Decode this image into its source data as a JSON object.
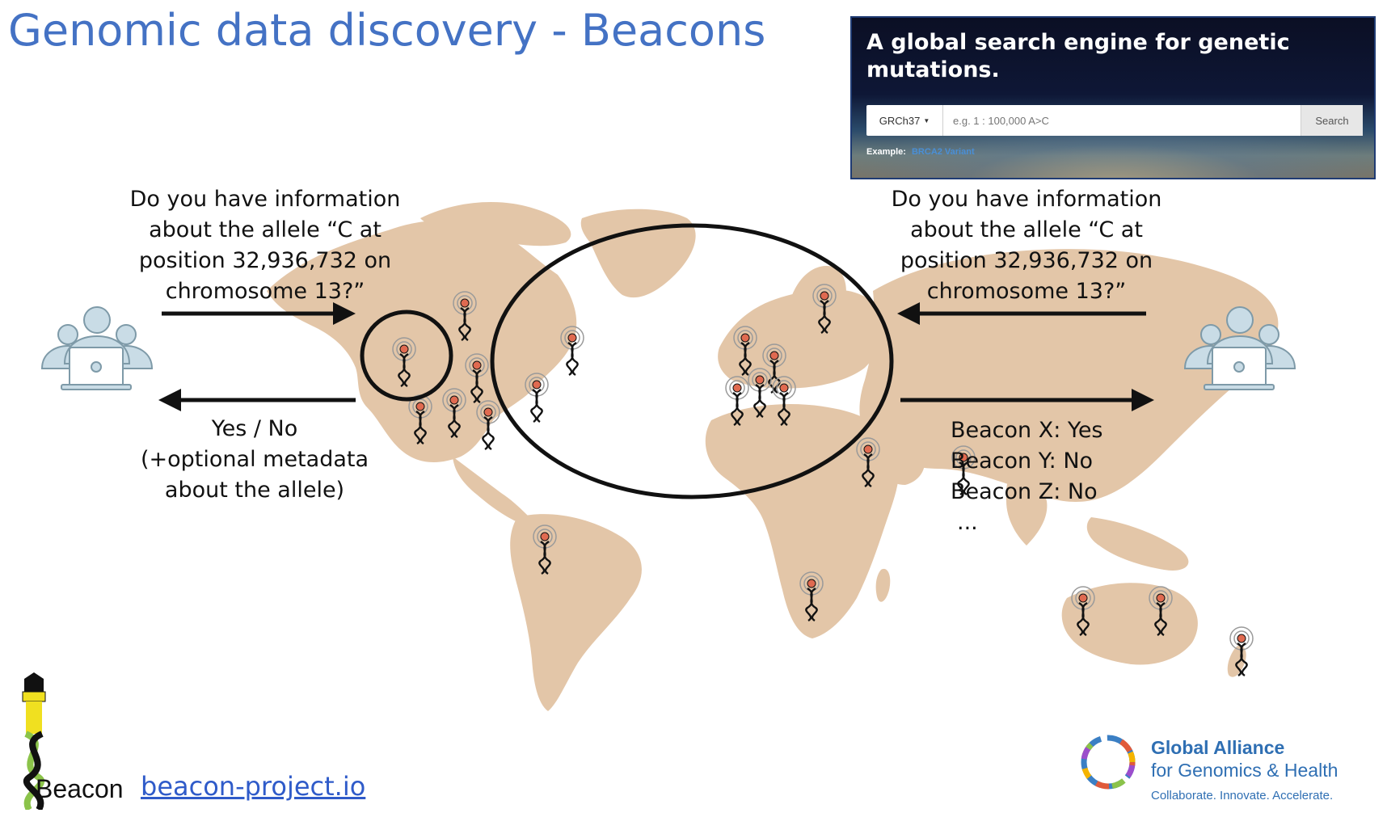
{
  "slide": {
    "title": "Genomic data discovery - Beacons"
  },
  "search_banner": {
    "headline": "A global search engine for genetic mutations.",
    "assembly_value": "GRCh37",
    "query_placeholder": "e.g. 1 : 100,000 A>C",
    "search_label": "Search",
    "example_label": "Example:",
    "example_link": "BRCA2 Variant"
  },
  "query_left": {
    "lines": [
      "Do you have information",
      "about the allele “C at",
      "position 32,936,732 on",
      "chromosome 13?”"
    ]
  },
  "query_right": {
    "lines": [
      "Do you have information",
      "about the allele “C at",
      "position 32,936,732 on",
      "chromosome 13?”"
    ]
  },
  "answer_left": {
    "lines": [
      "Yes / No",
      "(+optional metadata",
      "about the allele)"
    ]
  },
  "beacon_results": {
    "items": [
      "Beacon X: Yes",
      "Beacon Y: No",
      "Beacon Z: No",
      "..."
    ]
  },
  "branding": {
    "beacon_wordmark": "Beacon",
    "beacon_url": "beacon-project.io",
    "ga4gh_name": "Global Alliance",
    "ga4gh_sub": "for Genomics & Health",
    "ga4gh_tagline": "Collaborate. Innovate. Accelerate."
  },
  "colors": {
    "title": "#4472c4",
    "map_land": "#e3c6a8",
    "beacon_accent": "#e06a50",
    "user_icon": "#c9dce6",
    "link": "#2f5bc9",
    "ga4gh_blue": "#2f6fb3"
  },
  "icons": [
    "user-group-laptop-icon",
    "beacon-dna-icon",
    "arrow-right-icon",
    "arrow-left-icon",
    "beacon-lighthouse-logo",
    "ga4gh-logo"
  ]
}
